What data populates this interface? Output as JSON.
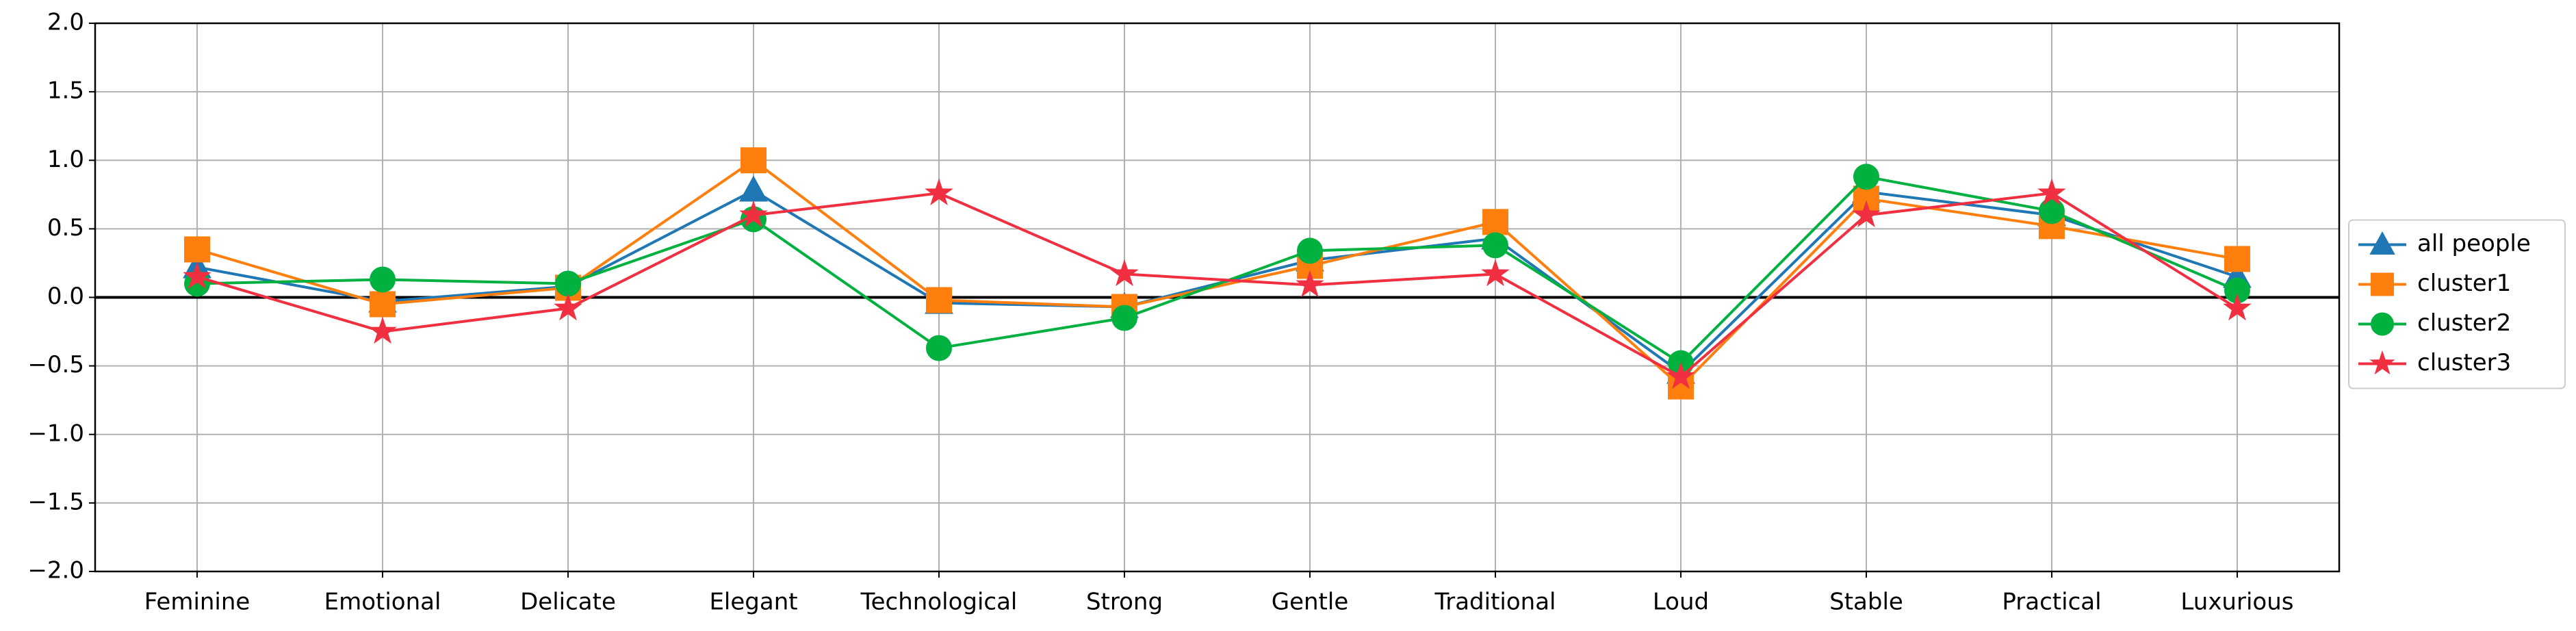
{
  "chart_data": {
    "type": "line",
    "categories": [
      "Feminine",
      "Emotional",
      "Delicate",
      "Elegant",
      "Technological",
      "Strong",
      "Gentle",
      "Traditional",
      "Loud",
      "Stable",
      "Practical",
      "Luxurious"
    ],
    "series": [
      {
        "name": "all people",
        "color": "#1f77b4",
        "marker": "triangle",
        "values": [
          0.22,
          -0.03,
          0.08,
          0.78,
          -0.04,
          -0.07,
          0.27,
          0.43,
          -0.55,
          0.77,
          0.6,
          0.15
        ]
      },
      {
        "name": "cluster1",
        "color": "#ff7f0e",
        "marker": "square",
        "values": [
          0.35,
          -0.05,
          0.07,
          1.0,
          -0.02,
          -0.07,
          0.23,
          0.55,
          -0.65,
          0.72,
          0.52,
          0.28
        ]
      },
      {
        "name": "cluster2",
        "color": "#00b140",
        "marker": "circle",
        "values": [
          0.1,
          0.13,
          0.1,
          0.57,
          -0.37,
          -0.15,
          0.34,
          0.38,
          -0.48,
          0.88,
          0.63,
          0.05
        ]
      },
      {
        "name": "cluster3",
        "color": "#f03040",
        "marker": "star",
        "values": [
          0.15,
          -0.25,
          -0.08,
          0.6,
          0.76,
          0.17,
          0.09,
          0.17,
          -0.58,
          0.6,
          0.76,
          -0.08
        ]
      }
    ],
    "ylim": [
      -2,
      2
    ],
    "yticks": [
      {
        "value": -2,
        "label": "−2.0"
      },
      {
        "value": -1.5,
        "label": "−1.5"
      },
      {
        "value": -1,
        "label": "−1.0"
      },
      {
        "value": -0.5,
        "label": "−0.5"
      },
      {
        "value": 0,
        "label": "0.0"
      },
      {
        "value": 0.5,
        "label": "0.5"
      },
      {
        "value": 1,
        "label": "1.0"
      },
      {
        "value": 1.5,
        "label": "1.5"
      },
      {
        "value": 2,
        "label": "2.0"
      }
    ],
    "hline": 0,
    "grid": true,
    "legend": "center right"
  }
}
